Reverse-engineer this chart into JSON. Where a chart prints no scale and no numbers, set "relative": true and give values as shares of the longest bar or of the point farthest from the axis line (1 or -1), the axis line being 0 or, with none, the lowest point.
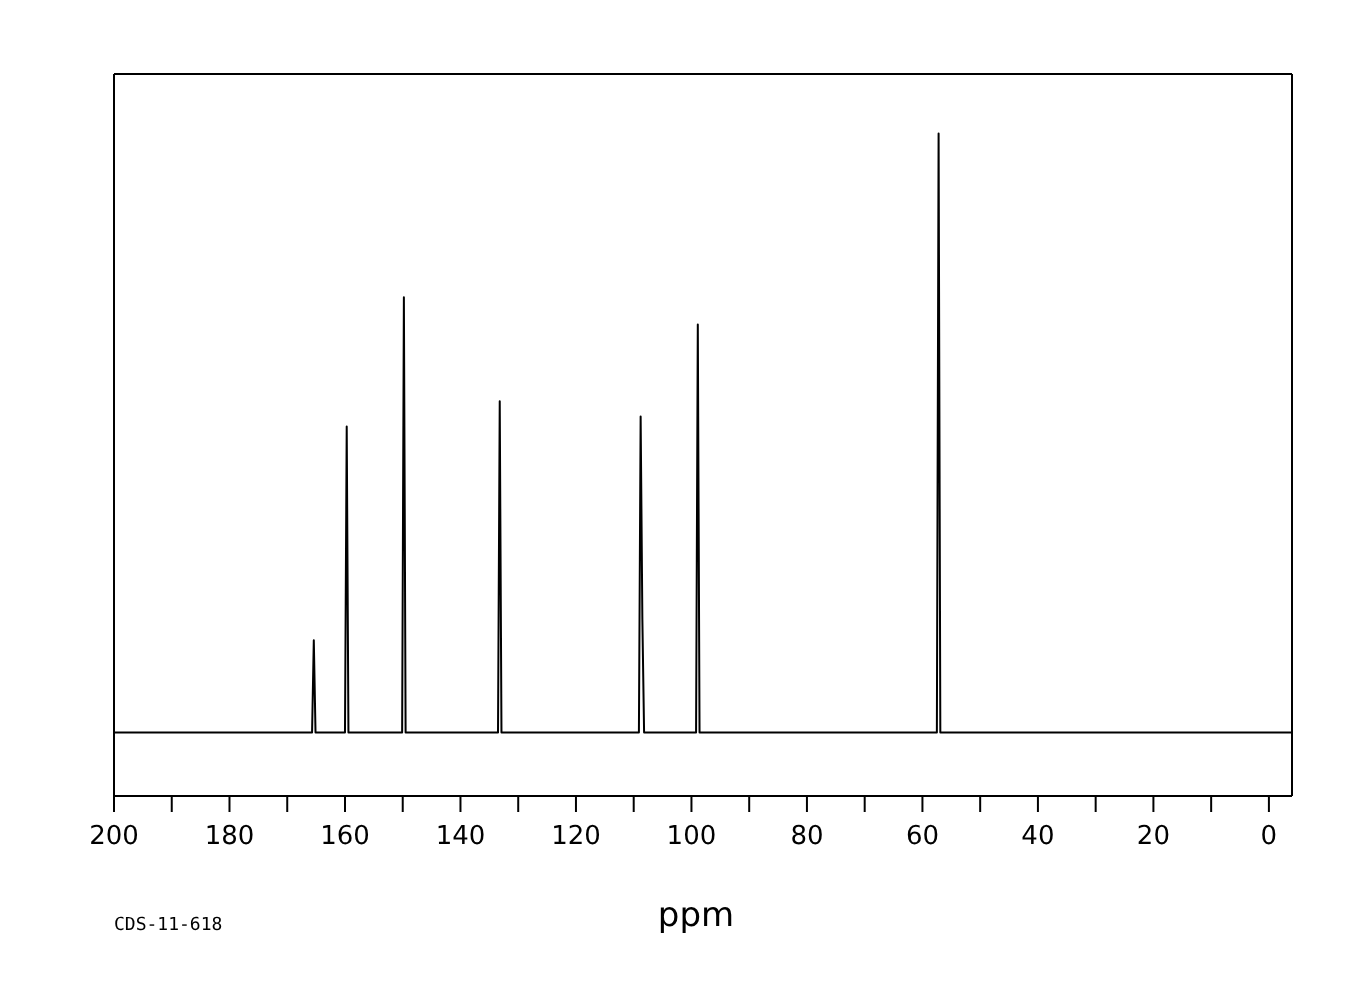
{
  "chart_data": {
    "type": "line",
    "xlabel": "ppm",
    "relative": true,
    "color": "#000000",
    "marker": "none",
    "grid": false,
    "x": [
      200,
      165.7,
      165.4,
      165.1,
      160.0,
      159.7,
      159.4,
      150.1,
      149.8,
      149.5,
      133.5,
      133.2,
      132.9,
      109.1,
      108.8,
      108.5,
      108.2,
      99.2,
      98.9,
      98.6,
      57.5,
      57.2,
      56.9,
      -4
    ],
    "values": [
      0.096,
      0.096,
      0.235,
      0.096,
      0.096,
      0.558,
      0.096,
      0.096,
      0.753,
      0.096,
      0.096,
      0.596,
      0.096,
      0.096,
      0.573,
      0.267,
      0.096,
      0.096,
      0.712,
      0.096,
      0.096,
      1,
      0.096,
      0.096
    ],
    "xlim": [
      200,
      -4
    ],
    "xticks": [
      200,
      {
        "value": 190,
        "label": null
      },
      180,
      {
        "value": 170,
        "label": null
      },
      160,
      {
        "value": 150,
        "label": null
      },
      140,
      {
        "value": 130,
        "label": null
      },
      120,
      {
        "value": 110,
        "label": null
      },
      100,
      {
        "value": 90,
        "label": null
      },
      80,
      {
        "value": 70,
        "label": null
      },
      60,
      {
        "value": 50,
        "label": null
      },
      40,
      {
        "value": 30,
        "label": null
      },
      20,
      {
        "value": 10,
        "label": null
      },
      0
    ],
    "annotations": [
      "CDS-11-618"
    ]
  }
}
